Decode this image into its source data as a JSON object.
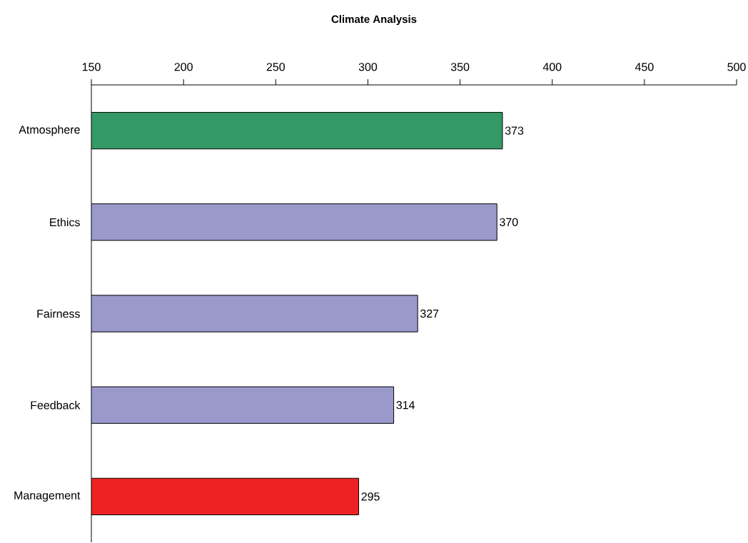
{
  "chart_data": {
    "type": "bar",
    "orientation": "horizontal",
    "title": "Climate Analysis",
    "categories": [
      "Atmosphere",
      "Ethics",
      "Fairness",
      "Feedback",
      "Management"
    ],
    "values": [
      373,
      370,
      327,
      314,
      295
    ],
    "colors": [
      "#339966",
      "#9999cc",
      "#9999cc",
      "#9999cc",
      "#ee2222"
    ],
    "xlim": [
      150,
      500
    ],
    "xticks": [
      150,
      200,
      250,
      300,
      350,
      400,
      450,
      500
    ],
    "data_labels": true
  }
}
